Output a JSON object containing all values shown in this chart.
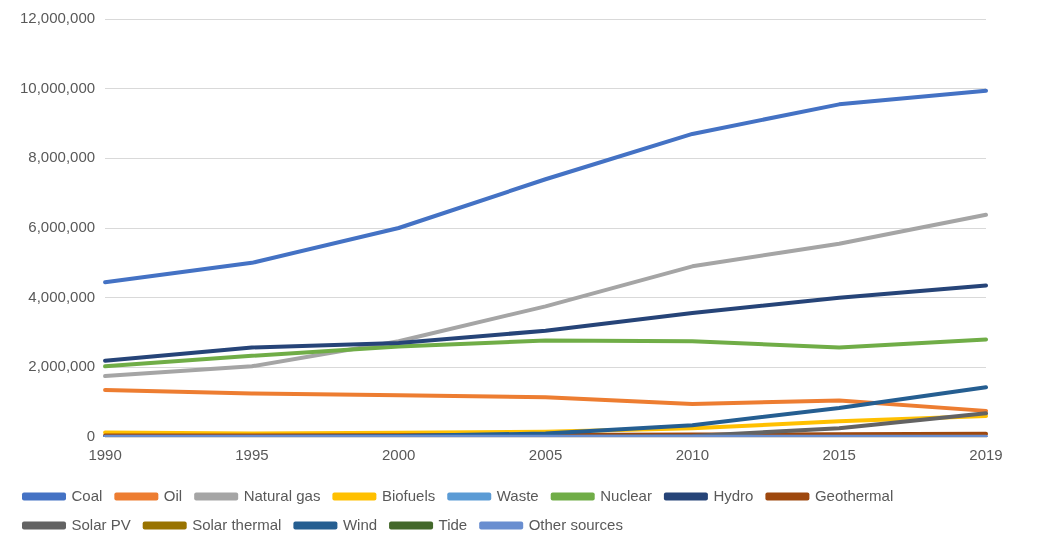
{
  "chart_data": {
    "type": "line",
    "categories": [
      "1990",
      "1995",
      "2000",
      "2005",
      "2010",
      "2015",
      "2019"
    ],
    "series": [
      {
        "name": "Coal",
        "color": "#4472c4",
        "values": [
          4440000,
          5000000,
          6000000,
          7400000,
          8700000,
          9550000,
          9940000
        ]
      },
      {
        "name": "Oil",
        "color": "#ed7d31",
        "values": [
          1350000,
          1250000,
          1200000,
          1140000,
          950000,
          1050000,
          750000
        ]
      },
      {
        "name": "Natural gas",
        "color": "#a5a5a5",
        "values": [
          1750000,
          2030000,
          2750000,
          3750000,
          4900000,
          5550000,
          6380000
        ]
      },
      {
        "name": "Biofuels",
        "color": "#ffc000",
        "values": [
          130000,
          100000,
          120000,
          150000,
          250000,
          450000,
          600000
        ]
      },
      {
        "name": "Waste",
        "color": "#5b9bd5",
        "values": [
          null,
          null,
          null,
          null,
          null,
          null,
          null
        ]
      },
      {
        "name": "Nuclear",
        "color": "#70ad47",
        "values": [
          2030000,
          2330000,
          2600000,
          2770000,
          2750000,
          2570000,
          2800000
        ]
      },
      {
        "name": "Hydro",
        "color": "#264478",
        "values": [
          2190000,
          2570000,
          2700000,
          3050000,
          3560000,
          4000000,
          4350000
        ]
      },
      {
        "name": "Geothermal",
        "color": "#9e480e",
        "values": [
          40000,
          40000,
          50000,
          60000,
          70000,
          80000,
          90000
        ]
      },
      {
        "name": "Solar PV",
        "color": "#636363",
        "values": [
          null,
          null,
          null,
          0,
          30000,
          250000,
          680000
        ]
      },
      {
        "name": "Solar thermal",
        "color": "#997300",
        "values": [
          null,
          null,
          null,
          null,
          null,
          null,
          null
        ]
      },
      {
        "name": "Wind",
        "color": "#255e91",
        "values": [
          0,
          0,
          30000,
          100000,
          340000,
          830000,
          1430000
        ]
      },
      {
        "name": "Tide",
        "color": "#43682b",
        "values": [
          null,
          null,
          null,
          null,
          null,
          null,
          null
        ]
      },
      {
        "name": "Other sources",
        "color": "#698ed0",
        "values": [
          10000,
          10000,
          10000,
          10000,
          10000,
          10000,
          10000
        ]
      }
    ],
    "ylim": [
      0,
      12000000
    ],
    "yticks": [
      {
        "value": 0,
        "label": "0"
      },
      {
        "value": 2000000,
        "label": "2,000,000"
      },
      {
        "value": 4000000,
        "label": "4,000,000"
      },
      {
        "value": 6000000,
        "label": "6,000,000"
      },
      {
        "value": 8000000,
        "label": "8,000,000"
      },
      {
        "value": 10000000,
        "label": "10,000,000"
      },
      {
        "value": 12000000,
        "label": "12,000,000"
      }
    ],
    "grid": "y",
    "legend": "bottom",
    "marker": "none",
    "line_style": "solid"
  }
}
